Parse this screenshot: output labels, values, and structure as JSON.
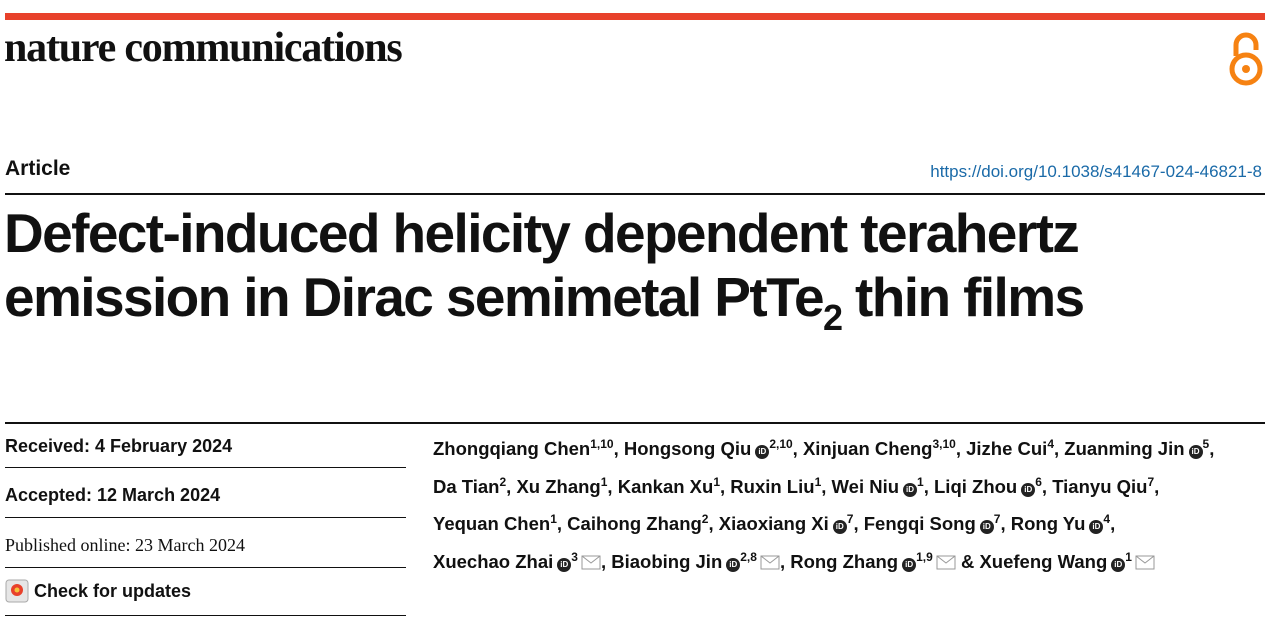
{
  "journal": "nature communications",
  "article_type": "Article",
  "doi": "https://doi.org/10.1038/s41467-024-46821-8",
  "title": {
    "line1": "Defect-induced helicity dependent terahertz",
    "line2": "emission in Dirac semimetal PtTe",
    "subscript": "2",
    "line2_end": " thin films"
  },
  "dates": {
    "received": "Received: 4 February 2024",
    "accepted": "Accepted: 12 March 2024",
    "published": "Published online: 23 March 2024"
  },
  "check_updates": "Check for updates",
  "authors": [
    {
      "name": "Zhongqiang Chen",
      "affiliations": "1,10",
      "orcid": false,
      "email": false,
      "sep": ","
    },
    {
      "name": "Hongsong Qiu",
      "affiliations": "2,10",
      "orcid": true,
      "email": false,
      "sep": ","
    },
    {
      "name": "Xinjuan Cheng",
      "affiliations": "3,10",
      "orcid": false,
      "email": false,
      "sep": ","
    },
    {
      "name": "Jizhe Cui",
      "affiliations": "4",
      "orcid": false,
      "email": false,
      "sep": ","
    },
    {
      "name": "Zuanming Jin",
      "affiliations": "5",
      "orcid": true,
      "email": false,
      "sep": ","
    },
    {
      "name": "Da Tian",
      "affiliations": "2",
      "orcid": false,
      "email": false,
      "sep": ","
    },
    {
      "name": "Xu Zhang",
      "affiliations": "1",
      "orcid": false,
      "email": false,
      "sep": ","
    },
    {
      "name": "Kankan Xu",
      "affiliations": "1",
      "orcid": false,
      "email": false,
      "sep": ","
    },
    {
      "name": "Ruxin Liu",
      "affiliations": "1",
      "orcid": false,
      "email": false,
      "sep": ","
    },
    {
      "name": "Wei Niu",
      "affiliations": "1",
      "orcid": true,
      "email": false,
      "sep": ","
    },
    {
      "name": "Liqi Zhou",
      "affiliations": "6",
      "orcid": true,
      "email": false,
      "sep": ","
    },
    {
      "name": "Tianyu Qiu",
      "affiliations": "7",
      "orcid": false,
      "email": false,
      "sep": ","
    },
    {
      "name": "Yequan Chen",
      "affiliations": "1",
      "orcid": false,
      "email": false,
      "sep": ","
    },
    {
      "name": "Caihong Zhang",
      "affiliations": "2",
      "orcid": false,
      "email": false,
      "sep": ","
    },
    {
      "name": "Xiaoxiang Xi",
      "affiliations": "7",
      "orcid": true,
      "email": false,
      "sep": ","
    },
    {
      "name": "Fengqi Song",
      "affiliations": "7",
      "orcid": true,
      "email": false,
      "sep": ","
    },
    {
      "name": "Rong Yu",
      "affiliations": "4",
      "orcid": true,
      "email": false,
      "sep": ","
    },
    {
      "name": "Xuechao Zhai",
      "affiliations": "3",
      "orcid": true,
      "email": true,
      "sep": ","
    },
    {
      "name": "Biaobing Jin",
      "affiliations": "2,8",
      "orcid": true,
      "email": true,
      "sep": ","
    },
    {
      "name": "Rong Zhang",
      "affiliations": "1,9",
      "orcid": true,
      "email": true
    },
    {
      "prefix": "&",
      "name": "Xuefeng Wang",
      "affiliations": "1",
      "orcid": true,
      "email": true
    }
  ]
}
